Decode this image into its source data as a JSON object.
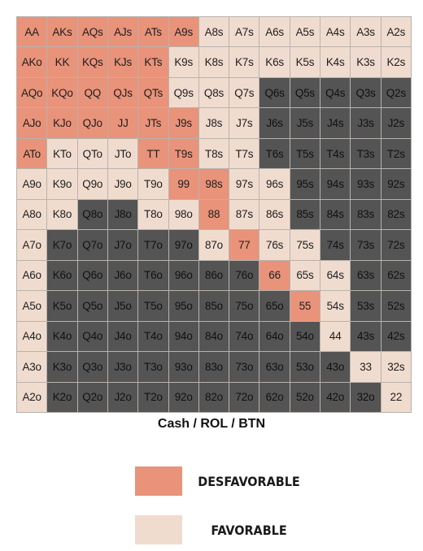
{
  "chart_data": {
    "type": "heatmap",
    "title": "Cash / ROL / BTN",
    "colors": {
      "desfavorable": "#e9937a",
      "favorable": "#f0dccf",
      "not_in_range": "#545454"
    },
    "legend": [
      {
        "key": "U",
        "label": "DESFAVORABLE"
      },
      {
        "key": "F",
        "label": "FAVORABLE"
      }
    ],
    "rows": [
      [
        {
          "h": "AA",
          "c": "U"
        },
        {
          "h": "AKs",
          "c": "U"
        },
        {
          "h": "AQs",
          "c": "U"
        },
        {
          "h": "AJs",
          "c": "U"
        },
        {
          "h": "ATs",
          "c": "U"
        },
        {
          "h": "A9s",
          "c": "U"
        },
        {
          "h": "A8s",
          "c": "F"
        },
        {
          "h": "A7s",
          "c": "F"
        },
        {
          "h": "A6s",
          "c": "F"
        },
        {
          "h": "A5s",
          "c": "F"
        },
        {
          "h": "A4s",
          "c": "F"
        },
        {
          "h": "A3s",
          "c": "F"
        },
        {
          "h": "A2s",
          "c": "F"
        }
      ],
      [
        {
          "h": "AKo",
          "c": "U"
        },
        {
          "h": "KK",
          "c": "U"
        },
        {
          "h": "KQs",
          "c": "U"
        },
        {
          "h": "KJs",
          "c": "U"
        },
        {
          "h": "KTs",
          "c": "U"
        },
        {
          "h": "K9s",
          "c": "F"
        },
        {
          "h": "K8s",
          "c": "F"
        },
        {
          "h": "K7s",
          "c": "F"
        },
        {
          "h": "K6s",
          "c": "F"
        },
        {
          "h": "K5s",
          "c": "F"
        },
        {
          "h": "K4s",
          "c": "F"
        },
        {
          "h": "K3s",
          "c": "F"
        },
        {
          "h": "K2s",
          "c": "F"
        }
      ],
      [
        {
          "h": "AQo",
          "c": "U"
        },
        {
          "h": "KQo",
          "c": "U"
        },
        {
          "h": "QQ",
          "c": "U"
        },
        {
          "h": "QJs",
          "c": "U"
        },
        {
          "h": "QTs",
          "c": "U"
        },
        {
          "h": "Q9s",
          "c": "F"
        },
        {
          "h": "Q8s",
          "c": "F"
        },
        {
          "h": "Q7s",
          "c": "F"
        },
        {
          "h": "Q6s",
          "c": "D"
        },
        {
          "h": "Q5s",
          "c": "D"
        },
        {
          "h": "Q4s",
          "c": "D"
        },
        {
          "h": "Q3s",
          "c": "D"
        },
        {
          "h": "Q2s",
          "c": "D"
        }
      ],
      [
        {
          "h": "AJo",
          "c": "U"
        },
        {
          "h": "KJo",
          "c": "U"
        },
        {
          "h": "QJo",
          "c": "U"
        },
        {
          "h": "JJ",
          "c": "U"
        },
        {
          "h": "JTs",
          "c": "U"
        },
        {
          "h": "J9s",
          "c": "U"
        },
        {
          "h": "J8s",
          "c": "F"
        },
        {
          "h": "J7s",
          "c": "F"
        },
        {
          "h": "J6s",
          "c": "D"
        },
        {
          "h": "J5s",
          "c": "D"
        },
        {
          "h": "J4s",
          "c": "D"
        },
        {
          "h": "J3s",
          "c": "D"
        },
        {
          "h": "J2s",
          "c": "D"
        }
      ],
      [
        {
          "h": "ATo",
          "c": "U"
        },
        {
          "h": "KTo",
          "c": "F"
        },
        {
          "h": "QTo",
          "c": "F"
        },
        {
          "h": "JTo",
          "c": "F"
        },
        {
          "h": "TT",
          "c": "U"
        },
        {
          "h": "T9s",
          "c": "U"
        },
        {
          "h": "T8s",
          "c": "F"
        },
        {
          "h": "T7s",
          "c": "F"
        },
        {
          "h": "T6s",
          "c": "D"
        },
        {
          "h": "T5s",
          "c": "D"
        },
        {
          "h": "T4s",
          "c": "D"
        },
        {
          "h": "T3s",
          "c": "D"
        },
        {
          "h": "T2s",
          "c": "D"
        }
      ],
      [
        {
          "h": "A9o",
          "c": "F"
        },
        {
          "h": "K9o",
          "c": "F"
        },
        {
          "h": "Q9o",
          "c": "F"
        },
        {
          "h": "J9o",
          "c": "F"
        },
        {
          "h": "T9o",
          "c": "F"
        },
        {
          "h": "99",
          "c": "U"
        },
        {
          "h": "98s",
          "c": "U"
        },
        {
          "h": "97s",
          "c": "F"
        },
        {
          "h": "96s",
          "c": "F"
        },
        {
          "h": "95s",
          "c": "D"
        },
        {
          "h": "94s",
          "c": "D"
        },
        {
          "h": "93s",
          "c": "D"
        },
        {
          "h": "92s",
          "c": "D"
        }
      ],
      [
        {
          "h": "A8o",
          "c": "F"
        },
        {
          "h": "K8o",
          "c": "F"
        },
        {
          "h": "Q8o",
          "c": "D"
        },
        {
          "h": "J8o",
          "c": "D"
        },
        {
          "h": "T8o",
          "c": "F"
        },
        {
          "h": "98o",
          "c": "F"
        },
        {
          "h": "88",
          "c": "U"
        },
        {
          "h": "87s",
          "c": "F"
        },
        {
          "h": "86s",
          "c": "F"
        },
        {
          "h": "85s",
          "c": "D"
        },
        {
          "h": "84s",
          "c": "D"
        },
        {
          "h": "83s",
          "c": "D"
        },
        {
          "h": "82s",
          "c": "D"
        }
      ],
      [
        {
          "h": "A7o",
          "c": "F"
        },
        {
          "h": "K7o",
          "c": "D"
        },
        {
          "h": "Q7o",
          "c": "D"
        },
        {
          "h": "J7o",
          "c": "D"
        },
        {
          "h": "T7o",
          "c": "D"
        },
        {
          "h": "97o",
          "c": "D"
        },
        {
          "h": "87o",
          "c": "F"
        },
        {
          "h": "77",
          "c": "U"
        },
        {
          "h": "76s",
          "c": "F"
        },
        {
          "h": "75s",
          "c": "F"
        },
        {
          "h": "74s",
          "c": "D"
        },
        {
          "h": "73s",
          "c": "D"
        },
        {
          "h": "72s",
          "c": "D"
        }
      ],
      [
        {
          "h": "A6o",
          "c": "F"
        },
        {
          "h": "K6o",
          "c": "D"
        },
        {
          "h": "Q6o",
          "c": "D"
        },
        {
          "h": "J6o",
          "c": "D"
        },
        {
          "h": "T6o",
          "c": "D"
        },
        {
          "h": "96o",
          "c": "D"
        },
        {
          "h": "86o",
          "c": "D"
        },
        {
          "h": "76o",
          "c": "D"
        },
        {
          "h": "66",
          "c": "U"
        },
        {
          "h": "65s",
          "c": "F"
        },
        {
          "h": "64s",
          "c": "F"
        },
        {
          "h": "63s",
          "c": "D"
        },
        {
          "h": "62s",
          "c": "D"
        }
      ],
      [
        {
          "h": "A5o",
          "c": "F"
        },
        {
          "h": "K5o",
          "c": "D"
        },
        {
          "h": "Q5o",
          "c": "D"
        },
        {
          "h": "J5o",
          "c": "D"
        },
        {
          "h": "T5o",
          "c": "D"
        },
        {
          "h": "95o",
          "c": "D"
        },
        {
          "h": "85o",
          "c": "D"
        },
        {
          "h": "75o",
          "c": "D"
        },
        {
          "h": "65o",
          "c": "D"
        },
        {
          "h": "55",
          "c": "U"
        },
        {
          "h": "54s",
          "c": "F"
        },
        {
          "h": "53s",
          "c": "D"
        },
        {
          "h": "52s",
          "c": "D"
        }
      ],
      [
        {
          "h": "A4o",
          "c": "F"
        },
        {
          "h": "K4o",
          "c": "D"
        },
        {
          "h": "Q4o",
          "c": "D"
        },
        {
          "h": "J4o",
          "c": "D"
        },
        {
          "h": "T4o",
          "c": "D"
        },
        {
          "h": "94o",
          "c": "D"
        },
        {
          "h": "84o",
          "c": "D"
        },
        {
          "h": "74o",
          "c": "D"
        },
        {
          "h": "64o",
          "c": "D"
        },
        {
          "h": "54o",
          "c": "D"
        },
        {
          "h": "44",
          "c": "F"
        },
        {
          "h": "43s",
          "c": "D"
        },
        {
          "h": "42s",
          "c": "D"
        }
      ],
      [
        {
          "h": "A3o",
          "c": "F"
        },
        {
          "h": "K3o",
          "c": "D"
        },
        {
          "h": "Q3o",
          "c": "D"
        },
        {
          "h": "J3o",
          "c": "D"
        },
        {
          "h": "T3o",
          "c": "D"
        },
        {
          "h": "93o",
          "c": "D"
        },
        {
          "h": "83o",
          "c": "D"
        },
        {
          "h": "73o",
          "c": "D"
        },
        {
          "h": "63o",
          "c": "D"
        },
        {
          "h": "53o",
          "c": "D"
        },
        {
          "h": "43o",
          "c": "D"
        },
        {
          "h": "33",
          "c": "F"
        },
        {
          "h": "32s",
          "c": "F"
        }
      ],
      [
        {
          "h": "A2o",
          "c": "F"
        },
        {
          "h": "K2o",
          "c": "D"
        },
        {
          "h": "Q2o",
          "c": "D"
        },
        {
          "h": "J2o",
          "c": "D"
        },
        {
          "h": "T2o",
          "c": "D"
        },
        {
          "h": "92o",
          "c": "D"
        },
        {
          "h": "82o",
          "c": "D"
        },
        {
          "h": "72o",
          "c": "D"
        },
        {
          "h": "62o",
          "c": "D"
        },
        {
          "h": "52o",
          "c": "D"
        },
        {
          "h": "42o",
          "c": "D"
        },
        {
          "h": "32o",
          "c": "D"
        },
        {
          "h": "22",
          "c": "F"
        }
      ]
    ]
  }
}
